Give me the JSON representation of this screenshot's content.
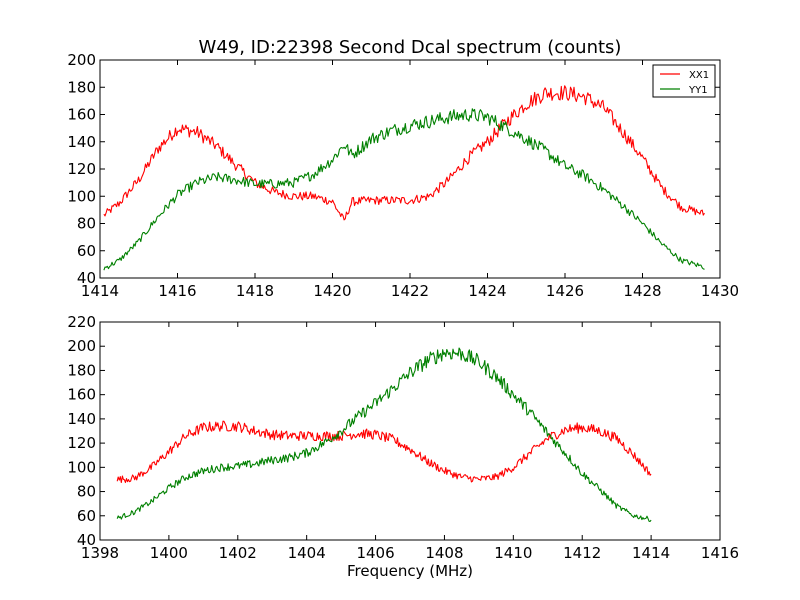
{
  "chart_data": [
    {
      "type": "line",
      "title": "W49, ID:22398 Second Dcal spectrum (counts)",
      "xlabel": "",
      "ylabel": "",
      "xlim": [
        1414,
        1430
      ],
      "ylim": [
        40,
        200
      ],
      "xticks": [
        "1414",
        "1416",
        "1418",
        "1420",
        "1422",
        "1424",
        "1426",
        "1428",
        "1430"
      ],
      "yticks": [
        "40",
        "60",
        "80",
        "100",
        "120",
        "140",
        "160",
        "180",
        "200"
      ],
      "legend": "top-right",
      "series": [
        {
          "name": "XX1",
          "color": "#ff0000",
          "x": [
            1414.1,
            1414.5,
            1415.0,
            1415.5,
            1416.0,
            1416.5,
            1417.0,
            1417.5,
            1418.0,
            1418.5,
            1419.0,
            1419.5,
            1420.0,
            1420.3,
            1420.5,
            1421.0,
            1421.5,
            1422.0,
            1422.5,
            1423.0,
            1423.5,
            1424.0,
            1424.5,
            1425.0,
            1425.5,
            1426.0,
            1426.5,
            1427.0,
            1427.5,
            1428.0,
            1428.5,
            1429.0,
            1429.6
          ],
          "y": [
            86,
            95,
            112,
            135,
            150,
            147,
            137,
            123,
            110,
            103,
            100,
            100,
            96,
            82,
            96,
            97,
            97,
            97,
            100,
            112,
            128,
            140,
            155,
            168,
            176,
            176,
            173,
            165,
            147,
            128,
            106,
            92,
            87
          ]
        },
        {
          "name": "YY1",
          "color": "#008000",
          "x": [
            1414.1,
            1414.5,
            1415.0,
            1415.5,
            1416.0,
            1416.5,
            1417.0,
            1417.5,
            1418.0,
            1418.5,
            1419.0,
            1419.5,
            1420.0,
            1420.3,
            1420.5,
            1421.0,
            1421.5,
            1422.0,
            1422.5,
            1423.0,
            1423.5,
            1424.0,
            1424.5,
            1425.0,
            1425.5,
            1426.0,
            1426.5,
            1427.0,
            1427.5,
            1428.0,
            1428.5,
            1429.0,
            1429.6
          ],
          "y": [
            47,
            53,
            67,
            85,
            101,
            110,
            114,
            112,
            109,
            109,
            110,
            116,
            127,
            138,
            130,
            142,
            148,
            152,
            155,
            158,
            160,
            158,
            150,
            142,
            133,
            122,
            115,
            105,
            93,
            80,
            65,
            53,
            48
          ]
        }
      ]
    },
    {
      "type": "line",
      "title": "",
      "xlabel": "Frequency (MHz)",
      "ylabel": "",
      "xlim": [
        1398,
        1416
      ],
      "ylim": [
        40,
        220
      ],
      "xticks": [
        "1398",
        "1400",
        "1402",
        "1404",
        "1406",
        "1408",
        "1410",
        "1412",
        "1414",
        "1416"
      ],
      "yticks": [
        "40",
        "60",
        "80",
        "100",
        "120",
        "140",
        "160",
        "180",
        "200",
        "220"
      ],
      "series": [
        {
          "color": "#ff0000",
          "x": [
            1398.5,
            1399.0,
            1399.5,
            1400.0,
            1400.5,
            1401.0,
            1401.5,
            1402.0,
            1402.5,
            1403.0,
            1403.5,
            1404.0,
            1404.5,
            1405.0,
            1405.5,
            1406.0,
            1406.5,
            1407.0,
            1407.5,
            1408.0,
            1408.5,
            1409.0,
            1409.5,
            1410.0,
            1410.5,
            1411.0,
            1411.5,
            1412.0,
            1412.5,
            1413.0,
            1413.5,
            1414.0
          ],
          "y": [
            90,
            91,
            100,
            113,
            126,
            133,
            134,
            134,
            130,
            127,
            126,
            126,
            126,
            126,
            128,
            127,
            123,
            115,
            105,
            97,
            92,
            90,
            92,
            100,
            112,
            124,
            131,
            133,
            130,
            124,
            110,
            94
          ]
        },
        {
          "color": "#008000",
          "x": [
            1398.5,
            1399.0,
            1399.5,
            1400.0,
            1400.5,
            1401.0,
            1401.5,
            1402.0,
            1402.5,
            1403.0,
            1403.5,
            1404.0,
            1404.5,
            1405.0,
            1405.5,
            1406.0,
            1406.5,
            1407.0,
            1407.5,
            1408.0,
            1408.5,
            1409.0,
            1409.5,
            1410.0,
            1410.5,
            1411.0,
            1411.5,
            1412.0,
            1412.5,
            1413.0,
            1413.5,
            1414.0
          ],
          "y": [
            58,
            63,
            72,
            83,
            92,
            97,
            100,
            101,
            103,
            106,
            108,
            112,
            120,
            130,
            142,
            153,
            165,
            178,
            188,
            195,
            194,
            187,
            175,
            160,
            145,
            128,
            112,
            95,
            82,
            68,
            60,
            57
          ]
        }
      ]
    }
  ]
}
